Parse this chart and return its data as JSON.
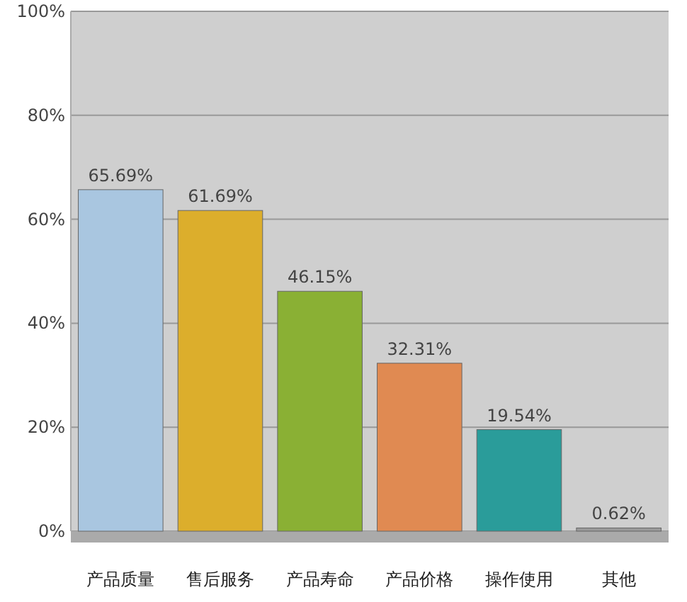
{
  "chart_data": {
    "type": "bar",
    "categories": [
      "产品质量",
      "售后服务",
      "产品寿命",
      "产品价格",
      "操作使用",
      "其他"
    ],
    "values": [
      65.69,
      61.69,
      46.15,
      32.31,
      19.54,
      0.62
    ],
    "colors": [
      "#a9c6e0",
      "#dcae2c",
      "#8ab034",
      "#e08a52",
      "#2a9c9a",
      "#9a9a9a"
    ],
    "ylim": [
      0,
      100
    ],
    "yticks": [
      {
        "value": 0,
        "label": "0%"
      },
      {
        "value": 20,
        "label": "20%"
      },
      {
        "value": 40,
        "label": "40%"
      },
      {
        "value": 60,
        "label": "60%"
      },
      {
        "value": 80,
        "label": "80%"
      },
      {
        "value": 100,
        "label": "100%"
      }
    ],
    "grid": "y",
    "data_labels": true,
    "value_labels": [
      "65.69%",
      "61.69%",
      "46.15%",
      "32.31%",
      "19.54%",
      "0.62%"
    ]
  }
}
